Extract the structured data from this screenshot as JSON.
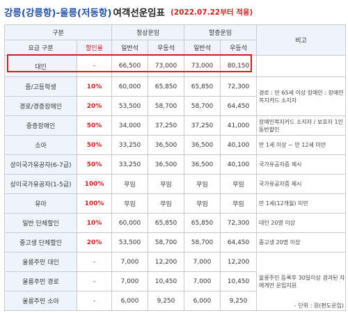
{
  "title": {
    "route": "강릉(강릉항)-울릉(저동항)",
    "label": "여객선운임표",
    "effective": "(2022.07.22부터 적용)"
  },
  "header": {
    "category": "구분",
    "fare_type": "요금 구분",
    "discount": "할인율",
    "regular": "정상운임",
    "peak": "할증운임",
    "general": "일반석",
    "premium": "우등석",
    "remarks": "비고"
  },
  "rows": [
    {
      "label": "대인",
      "rate": "-",
      "rn": "66,500",
      "rp": "73,000",
      "pn": "73,000",
      "pp": "80,150",
      "note": ""
    },
    {
      "label": "중/고등학생",
      "rate": "10%",
      "rn": "60,000",
      "rp": "65,850",
      "pn": "65,850",
      "pp": "72,300",
      "note": ""
    },
    {
      "label": "경로/경증장애인",
      "rate": "20%",
      "rn": "53,500",
      "rp": "58,700",
      "pn": "58,700",
      "pp": "64,450",
      "note": "경로 : 만 65세 이상 장애인 : 장애인복지카드 소지자"
    },
    {
      "label": "중증장애인",
      "rate": "50%",
      "rn": "34,000",
      "rp": "37,250",
      "pn": "37,250",
      "pp": "41,000",
      "note": "장애인복지카드 소지자 / 보호자 1인 동반할인"
    },
    {
      "label": "소아",
      "rate": "50%",
      "rn": "33,250",
      "rp": "36,500",
      "pn": "36,500",
      "pp": "40,100",
      "note": "만 1세 이상 ~ 만 12세 미만"
    },
    {
      "label": "상이국가유공자(6-7급)",
      "rate": "50%",
      "rn": "33,250",
      "rp": "36,500",
      "pn": "36,500",
      "pp": "40,100",
      "note": "국가유공자증 제시"
    },
    {
      "label": "상이국가유공자(1-5급)",
      "rate": "100%",
      "rn": "무임",
      "rp": "무임",
      "pn": "무임",
      "pp": "무임",
      "note": "국가유공자증 제시"
    },
    {
      "label": "유아",
      "rate": "100%",
      "rn": "무임",
      "rp": "무임",
      "pn": "무임",
      "pp": "무임",
      "note": "만 1세(12개월) 미만"
    },
    {
      "label": "일반 단체할인",
      "rate": "10%",
      "rn": "60,000",
      "rp": "65,850",
      "pn": "65,850",
      "pp": "72,300",
      "note": "대인 20명 이상"
    },
    {
      "label": "중고생 단체할인",
      "rate": "20%",
      "rn": "53,500",
      "rp": "58,700",
      "pn": "58,700",
      "pp": "64,450",
      "note": "중고생 20명 이상"
    },
    {
      "label": "울릉주민 대인",
      "rate": "-",
      "rn": "7,000",
      "rp": "12,200",
      "pn": "7,000",
      "pp": "12,200",
      "note": ""
    },
    {
      "label": "울릉주민 경로",
      "rate": "-",
      "rn": "7,000",
      "rp": "10,450",
      "pn": "7,000",
      "pp": "10,450",
      "note": "울릉주민 등록후 30일이상 경과된 자에게만 운임지원"
    },
    {
      "label": "울릉주민 소아",
      "rate": "-",
      "rn": "6,000",
      "rp": "9,250",
      "pn": "6,000",
      "pp": "9,250",
      "note": ""
    }
  ],
  "unit": "- 단위 : 원(편도운임)"
}
